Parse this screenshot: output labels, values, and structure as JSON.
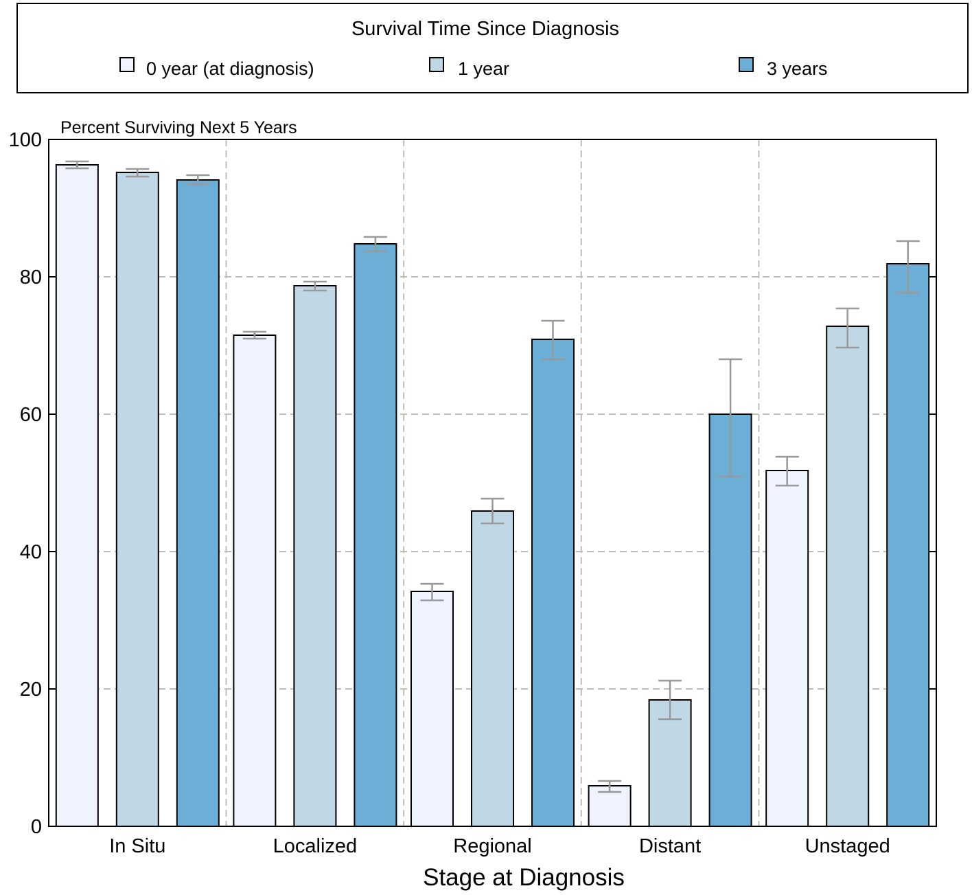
{
  "chart_data": {
    "type": "bar",
    "legend": {
      "title": "Survival Time Since Diagnosis",
      "placement": "top"
    },
    "ylabel": "Percent Surviving Next 5 Years",
    "xlabel": "Stage at Diagnosis",
    "ylim": [
      0,
      100
    ],
    "yticks": [
      "0",
      "20",
      "40",
      "60",
      "80",
      "100"
    ],
    "grid": true,
    "error_bars": true,
    "categories": [
      "In Situ",
      "Localized",
      "Regional",
      "Distant",
      "Unstaged"
    ],
    "series": [
      {
        "name": "0 year (at diagnosis)",
        "color": "#eef3fd",
        "values": [
          96.3,
          71.5,
          34.2,
          5.9,
          51.8
        ],
        "lower": [
          95.8,
          71.0,
          32.9,
          5.0,
          49.6
        ],
        "upper": [
          96.8,
          72.0,
          35.3,
          6.6,
          53.8
        ]
      },
      {
        "name": "1 year",
        "color": "#c0d8e6",
        "values": [
          95.2,
          78.7,
          45.9,
          18.4,
          72.8
        ],
        "lower": [
          94.6,
          78.0,
          44.1,
          15.6,
          69.7
        ],
        "upper": [
          95.7,
          79.3,
          47.7,
          21.2,
          75.4
        ]
      },
      {
        "name": "3 years",
        "color": "#6baed6",
        "values": [
          94.1,
          84.8,
          70.9,
          60.0,
          81.9
        ],
        "lower": [
          93.5,
          83.7,
          68.0,
          50.9,
          77.7
        ],
        "upper": [
          94.8,
          85.8,
          73.6,
          68.0,
          85.2
        ]
      }
    ]
  }
}
